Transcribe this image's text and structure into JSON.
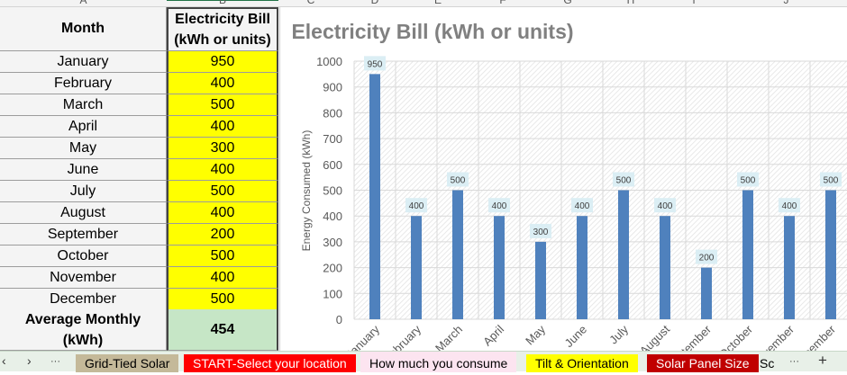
{
  "column_headers": [
    "A",
    "B",
    "C",
    "D",
    "E",
    "F",
    "G",
    "H",
    "I",
    "J"
  ],
  "table": {
    "header_month": "Month",
    "header_bill_line1": "Electricity Bill",
    "header_bill_line2": "(kWh or units)",
    "rows": [
      {
        "month": "January",
        "value": "950"
      },
      {
        "month": "February",
        "value": "400"
      },
      {
        "month": "March",
        "value": "500"
      },
      {
        "month": "April",
        "value": "400"
      },
      {
        "month": "May",
        "value": "300"
      },
      {
        "month": "June",
        "value": "400"
      },
      {
        "month": "July",
        "value": "500"
      },
      {
        "month": "August",
        "value": "400"
      },
      {
        "month": "September",
        "value": "200"
      },
      {
        "month": "October",
        "value": "500"
      },
      {
        "month": "November",
        "value": "400"
      },
      {
        "month": "December",
        "value": "500"
      }
    ],
    "avg_label_line1": "Average Monthly",
    "avg_label_line2": "(kWh)",
    "avg_value": "454"
  },
  "chart_data": {
    "type": "bar",
    "title": "Electricity Bill (kWh or units)",
    "xlabel": "",
    "ylabel": "Energy Consumed (kWh)",
    "categories": [
      "January",
      "February",
      "March",
      "April",
      "May",
      "June",
      "July",
      "August",
      "September",
      "October",
      "November",
      "December"
    ],
    "values": [
      950,
      400,
      500,
      400,
      300,
      400,
      500,
      400,
      200,
      500,
      400,
      500
    ],
    "ylim": [
      0,
      1000
    ],
    "yticks": [
      0,
      100,
      200,
      300,
      400,
      500,
      600,
      700,
      800,
      900,
      1000
    ],
    "grid": true,
    "data_labels": true,
    "bar_color": "#4f81bd",
    "label_bg": "#dbeef4"
  },
  "sheet_tabs": [
    {
      "label": "Grid-Tied Solar",
      "bg": "#c4b999",
      "fg": "#000000"
    },
    {
      "label": "START-Select your location",
      "bg": "#ff0000",
      "fg": "#ffffff"
    },
    {
      "label": "How much you consume",
      "bg": "#fce4f0",
      "fg": "#000000"
    },
    {
      "label": "Tilt & Orientation",
      "bg": "#ffff00",
      "fg": "#000000"
    },
    {
      "label": "Solar Panel Size",
      "bg": "#c00000",
      "fg": "#ffffff"
    },
    {
      "label": "Sc",
      "bg": "transparent",
      "fg": "#000000"
    }
  ],
  "tab_nav": {
    "prev": "‹",
    "next": "›",
    "more": "···",
    "more_right": "···",
    "add": "+"
  }
}
